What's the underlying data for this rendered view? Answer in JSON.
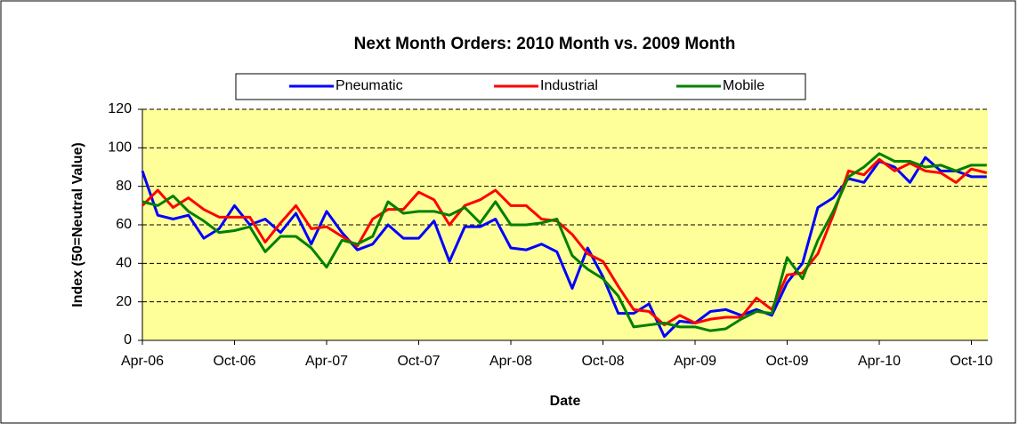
{
  "chart_data": {
    "type": "line",
    "title": "Next Month Orders: 2010 Month vs. 2009 Month",
    "x_label": "Date",
    "y_label": "Index (50=Neutral Value)",
    "categories": [
      "Apr-06",
      null,
      null,
      null,
      null,
      null,
      "Oct-06",
      null,
      null,
      null,
      null,
      null,
      "Apr-07",
      null,
      null,
      null,
      null,
      null,
      "Oct-07",
      null,
      null,
      null,
      null,
      null,
      "Apr-08",
      null,
      null,
      null,
      null,
      null,
      "Oct-08",
      null,
      null,
      null,
      null,
      null,
      "Apr-09",
      null,
      null,
      null,
      null,
      null,
      "Oct-09",
      null,
      null,
      null,
      null,
      null,
      "Apr-10",
      null,
      null,
      null,
      null,
      null,
      "Oct-10",
      null
    ],
    "series": [
      {
        "name": "Pneumatic",
        "color": "#0000ff",
        "values": [
          88,
          65,
          63,
          65,
          53,
          58,
          70,
          60,
          63,
          56,
          66,
          50,
          67,
          56,
          47,
          50,
          60,
          53,
          53,
          62,
          41,
          59,
          59,
          63,
          48,
          47,
          50,
          46,
          27,
          48,
          33,
          14,
          14,
          19,
          2,
          10,
          9,
          15,
          16,
          13,
          16,
          13,
          30,
          40,
          69,
          74,
          84,
          82,
          93,
          90,
          82,
          95,
          88,
          88,
          85,
          85
        ]
      },
      {
        "name": "Industrial",
        "color": "#ff0000",
        "values": [
          70,
          78,
          69,
          74,
          68,
          64,
          64,
          64,
          51,
          61,
          70,
          58,
          59,
          54,
          49,
          63,
          68,
          68,
          77,
          73,
          60,
          70,
          73,
          78,
          70,
          70,
          63,
          62,
          55,
          45,
          41,
          28,
          16,
          15,
          8,
          13,
          9,
          11,
          12,
          12,
          22,
          16,
          34,
          35,
          45,
          65,
          88,
          86,
          94,
          88,
          92,
          88,
          87,
          82,
          89,
          87
        ]
      },
      {
        "name": "Mobile",
        "color": "#008000",
        "values": [
          72,
          70,
          75,
          67,
          62,
          56,
          57,
          59,
          46,
          54,
          54,
          48,
          38,
          52,
          50,
          54,
          72,
          66,
          67,
          67,
          65,
          69,
          61,
          72,
          60,
          60,
          61,
          63,
          44,
          37,
          32,
          23,
          7,
          8,
          9,
          7,
          7,
          5,
          6,
          11,
          15,
          14,
          43,
          32,
          52,
          67,
          85,
          90,
          97,
          93,
          93,
          90,
          91,
          88,
          91,
          91
        ]
      }
    ],
    "ylim": [
      0,
      120
    ],
    "yticks": [
      0,
      20,
      40,
      60,
      80,
      100,
      120
    ],
    "grid": true,
    "plot_background": "#ffff99",
    "legend": "top"
  }
}
